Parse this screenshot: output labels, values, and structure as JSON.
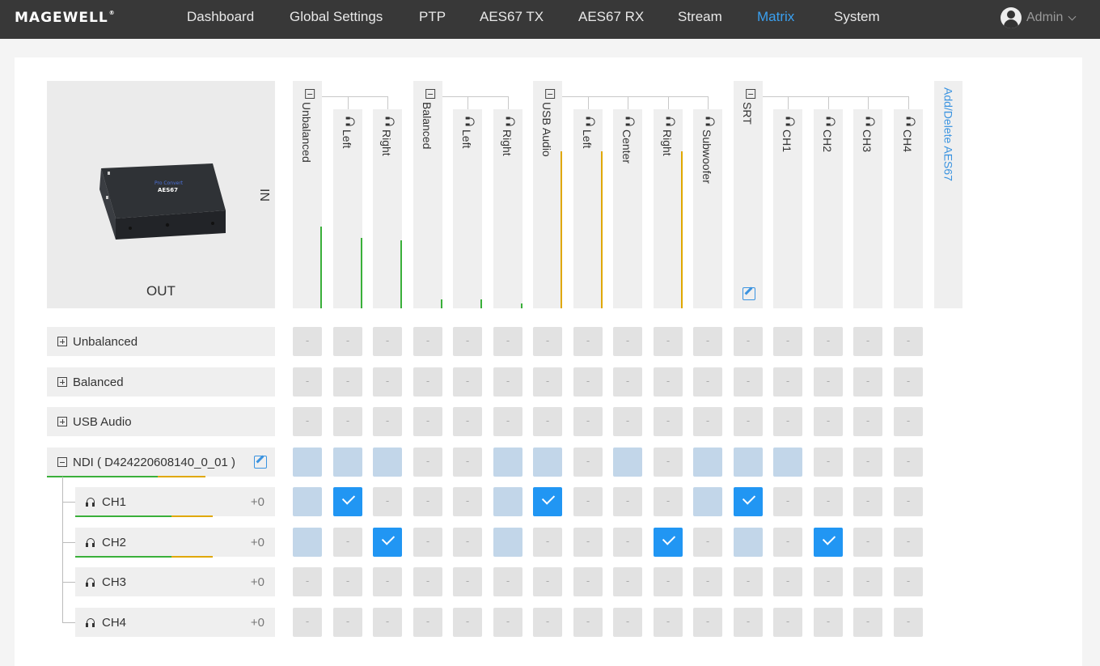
{
  "brand": {
    "logo": "MAGEWELL",
    "mark": "®"
  },
  "nav": [
    {
      "label": "Dashboard",
      "active": false
    },
    {
      "label": "Global Settings",
      "active": false
    },
    {
      "label": "PTP",
      "active": false
    },
    {
      "label": "AES67 TX",
      "active": false
    },
    {
      "label": "AES67 RX",
      "active": false
    },
    {
      "label": "Stream",
      "active": false
    },
    {
      "label": "Matrix",
      "active": true
    },
    {
      "label": "System",
      "active": false
    }
  ],
  "user": {
    "name": "Admin",
    "icon": "user-avatar-icon"
  },
  "matrix": {
    "out_label": "OUT",
    "in_label": "IN",
    "add_delete_label": "Add/Delete AES67",
    "device_image": {
      "brand": "Pro Convert",
      "model": "AES67",
      "icon": "device-photo"
    },
    "inputs": [
      {
        "label": "Unbalanced",
        "group": true,
        "collapse_icon": "collapse-icon",
        "meter": 0.36,
        "meter_color": "#3ab03a"
      },
      {
        "label": "Left",
        "group": false,
        "icon": "headphone-icon",
        "meter": 0.31,
        "meter_color": "#3ab03a"
      },
      {
        "label": "Right",
        "group": false,
        "icon": "headphone-icon",
        "meter": 0.3,
        "meter_color": "#3ab03a"
      },
      {
        "label": "Balanced",
        "group": true,
        "collapse_icon": "collapse-icon",
        "meter": 0.04,
        "meter_color": "#3ab03a"
      },
      {
        "label": "Left",
        "group": false,
        "icon": "headphone-icon",
        "meter": 0.04,
        "meter_color": "#3ab03a"
      },
      {
        "label": "Right",
        "group": false,
        "icon": "headphone-icon",
        "meter": 0.02,
        "meter_color": "#3ab03a"
      },
      {
        "label": "USB Audio",
        "group": true,
        "collapse_icon": "collapse-icon",
        "meter": 0.69,
        "meter_color": "#e0a800"
      },
      {
        "label": "Left",
        "group": false,
        "icon": "headphone-icon",
        "meter": 0.69,
        "meter_color": "#e0a800"
      },
      {
        "label": "Center",
        "group": false,
        "icon": "headphone-icon",
        "meter": 0,
        "meter_color": "#e0a800"
      },
      {
        "label": "Right",
        "group": false,
        "icon": "headphone-icon",
        "meter": 0.69,
        "meter_color": "#e0a800"
      },
      {
        "label": "Subwoofer",
        "group": false,
        "icon": "headphone-icon",
        "meter": 0,
        "meter_color": "#e0a800"
      },
      {
        "label": "SRT",
        "group": true,
        "collapse_icon": "collapse-icon",
        "meter": 0,
        "meter_color": "#3ab03a"
      },
      {
        "label": "CH1",
        "group": false,
        "icon": "headphone-icon",
        "meter": 0,
        "meter_color": "#3ab03a"
      },
      {
        "label": "CH2",
        "group": false,
        "icon": "headphone-icon",
        "meter": 0,
        "meter_color": "#3ab03a"
      },
      {
        "label": "CH3",
        "group": false,
        "icon": "headphone-icon",
        "meter": 0,
        "meter_color": "#3ab03a"
      },
      {
        "label": "CH4",
        "group": false,
        "icon": "headphone-icon",
        "meter": 0,
        "meter_color": "#3ab03a"
      }
    ],
    "outputs": [
      {
        "label": "Unbalanced",
        "type": "group",
        "expand_icon": "expand-icon",
        "cells": "----------------"
      },
      {
        "label": "Balanced",
        "type": "group",
        "expand_icon": "expand-icon",
        "cells": "----------------"
      },
      {
        "label": "USB Audio",
        "type": "group",
        "expand_icon": "expand-icon",
        "cells": "----------------"
      },
      {
        "label": "NDI ( D424220608140_0_01 )",
        "type": "group-open",
        "collapse_icon": "collapse-icon",
        "edit_icon": "edit-icon",
        "cells": "sss--ss-s-sss---",
        "level_green": 0.7,
        "level_yellow": 0.3
      },
      {
        "label": "CH1",
        "type": "channel",
        "gain": "+0",
        "icon": "headphone-icon",
        "cells": "sc---sc---sc----",
        "level_green": 0.7,
        "level_yellow": 0.3
      },
      {
        "label": "CH2",
        "type": "channel",
        "gain": "+0",
        "icon": "headphone-icon",
        "cells": "s-c--s---c-s-c--",
        "level_green": 0.7,
        "level_yellow": 0.3
      },
      {
        "label": "CH3",
        "type": "channel",
        "gain": "+0",
        "icon": "headphone-icon",
        "cells": "----------------"
      },
      {
        "label": "CH4",
        "type": "channel",
        "gain": "+0",
        "icon": "headphone-icon",
        "cells": "----------------"
      }
    ],
    "empty_cell_text": "-",
    "colors": {
      "accent": "#2196f3",
      "selected_cell": "#c2d6e9",
      "meter_green": "#3ab03a",
      "meter_yellow": "#e0a800",
      "nav_active": "#3aa0f0"
    }
  }
}
